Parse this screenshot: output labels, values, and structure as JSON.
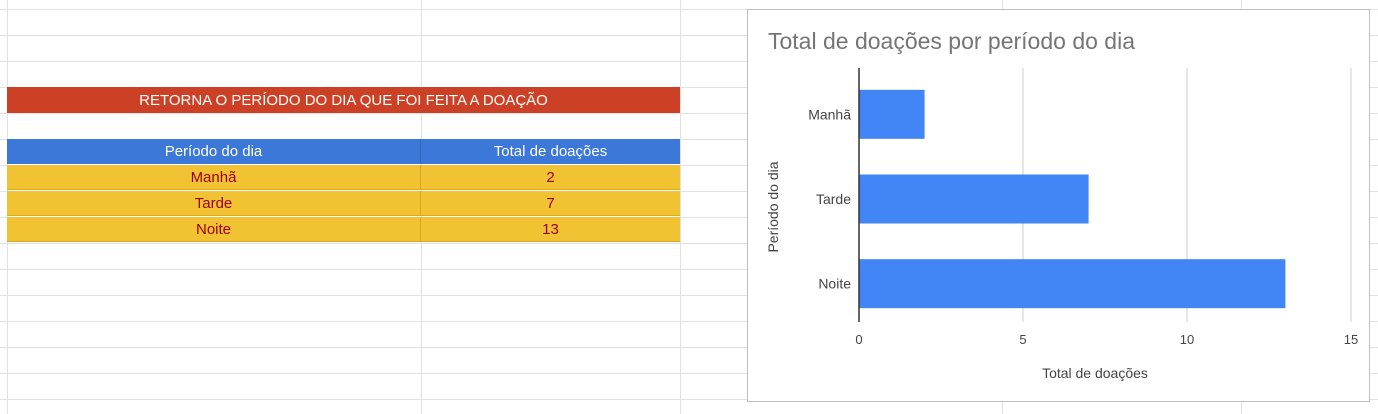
{
  "sheet": {
    "title_banner": "RETORNA O PERÍODO DO DIA QUE FOI FEITA A DOAÇÃO",
    "table": {
      "headers": [
        "Período do dia",
        "Total de doações"
      ],
      "rows": [
        {
          "periodo": "Manhã",
          "total": "2"
        },
        {
          "periodo": "Tarde",
          "total": "7"
        },
        {
          "periodo": "Noite",
          "total": "13"
        }
      ]
    }
  },
  "colors": {
    "banner": "#cc4125",
    "header": "#3c78d8",
    "rows": "#f1c232",
    "row_text": "#99000a",
    "bars": "#4285f4"
  },
  "chart_data": {
    "type": "bar",
    "orientation": "horizontal",
    "title": "Total de doações por período do dia",
    "xlabel": "Total de doações",
    "ylabel": "Período do dia",
    "categories": [
      "Manhã",
      "Tarde",
      "Noite"
    ],
    "values": [
      2,
      7,
      13
    ],
    "xlim": [
      0,
      15
    ],
    "xticks": [
      0,
      5,
      10,
      15
    ],
    "grid": true,
    "legend": "none"
  }
}
